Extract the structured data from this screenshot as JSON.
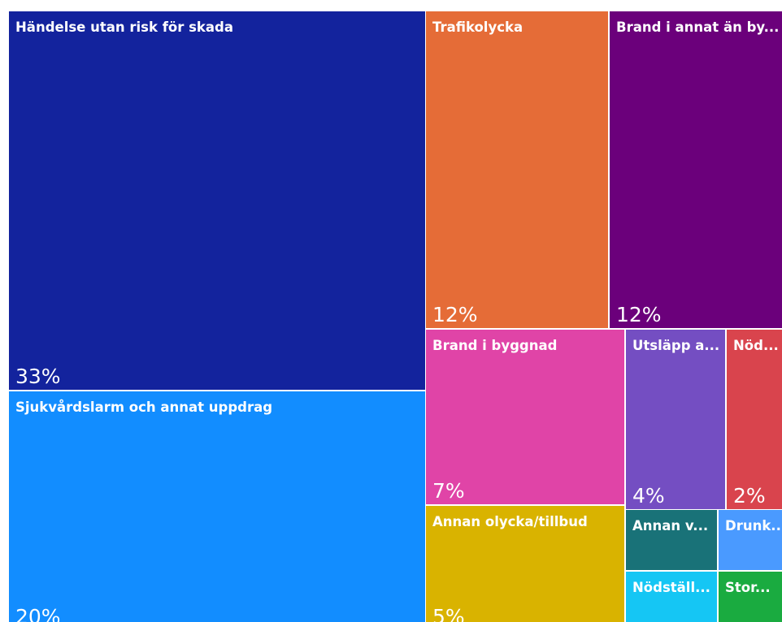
{
  "chart_data": {
    "type": "treemap",
    "items": [
      {
        "label": "Händelse utan risk för skada",
        "value": 33,
        "value_label": "33%",
        "color": "#13239d"
      },
      {
        "label": "Sjukvårdslarm och annat uppdrag",
        "value": 20,
        "value_label": "20%",
        "color": "#128dff"
      },
      {
        "label": "Trafikolycka",
        "value": 12,
        "value_label": "12%",
        "color": "#e56c37"
      },
      {
        "label": "Brand i annat än by...",
        "value": 12,
        "value_label": "12%",
        "color": "#6b007b"
      },
      {
        "label": "Brand i byggnad",
        "value": 7,
        "value_label": "7%",
        "color": "#e044a7"
      },
      {
        "label": "Utsläpp a...",
        "value": 4,
        "value_label": "4%",
        "color": "#744ec2"
      },
      {
        "label": "Nöd...",
        "value": 2,
        "value_label": "2%",
        "color": "#d9444d"
      },
      {
        "label": "Annan olycka/tillbud",
        "value": 5,
        "value_label": "5%",
        "color": "#d9b300"
      },
      {
        "label": "Annan v...",
        "value": null,
        "value_label": "",
        "color": "#197278"
      },
      {
        "label": "Drunk...",
        "value": null,
        "value_label": "",
        "color": "#4a9aff"
      },
      {
        "label": "Nödställ...",
        "value": null,
        "value_label": "",
        "color": "#15c6f4"
      },
      {
        "label": "Stor...",
        "value": null,
        "value_label": "",
        "color": "#1aab40"
      }
    ]
  }
}
